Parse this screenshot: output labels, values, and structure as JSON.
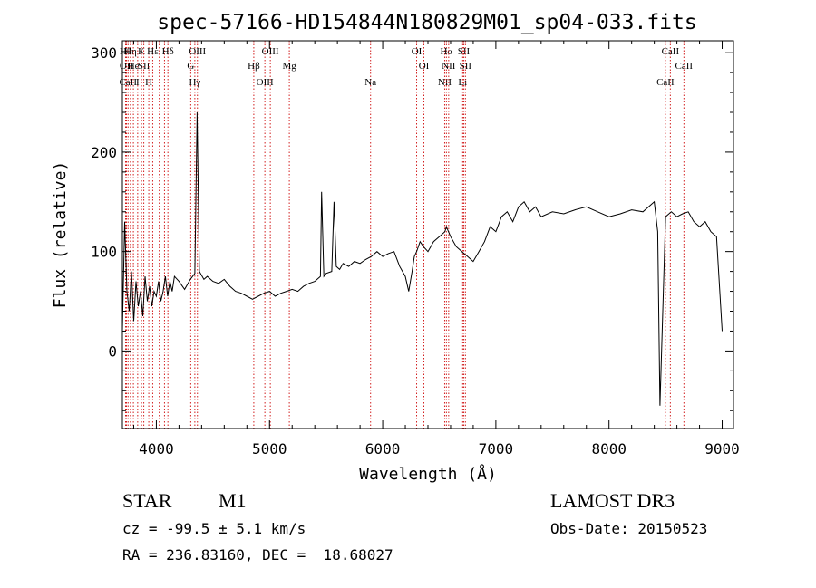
{
  "chart_data": {
    "type": "line",
    "title": "spec-57166-HD154844N180829M01_sp04-033.fits",
    "xlabel": "Wavelength (Å)",
    "ylabel": "Flux (relative)",
    "xlim": [
      3700,
      9100
    ],
    "ylim": [
      -78,
      312
    ],
    "x_ticks": [
      4000,
      5000,
      6000,
      7000,
      8000,
      9000
    ],
    "x_tick_labels": [
      "4000",
      "5000",
      "6000",
      "7000",
      "8000",
      "9000"
    ],
    "y_ticks": [
      0,
      100,
      200,
      300
    ],
    "y_tick_labels": [
      "0",
      "100",
      "200",
      "300"
    ],
    "grid": false,
    "series": [
      {
        "name": "flux",
        "x": [
          3700,
          3720,
          3740,
          3760,
          3780,
          3800,
          3820,
          3840,
          3860,
          3880,
          3900,
          3920,
          3940,
          3960,
          3980,
          4000,
          4020,
          4040,
          4060,
          4080,
          4100,
          4120,
          4140,
          4160,
          4200,
          4250,
          4300,
          4340,
          4360,
          4380,
          4420,
          4450,
          4500,
          4550,
          4600,
          4650,
          4700,
          4750,
          4800,
          4850,
          4900,
          4950,
          5000,
          5050,
          5100,
          5150,
          5200,
          5250,
          5300,
          5350,
          5400,
          5450,
          5460,
          5480,
          5500,
          5550,
          5570,
          5590,
          5620,
          5650,
          5700,
          5750,
          5800,
          5850,
          5900,
          5950,
          6000,
          6050,
          6100,
          6150,
          6200,
          6230,
          6260,
          6280,
          6300,
          6330,
          6360,
          6400,
          6450,
          6500,
          6550,
          6563,
          6600,
          6650,
          6700,
          6750,
          6800,
          6850,
          6900,
          6950,
          7000,
          7050,
          7100,
          7150,
          7200,
          7250,
          7300,
          7350,
          7400,
          7500,
          7600,
          7700,
          7800,
          7900,
          8000,
          8100,
          8200,
          8300,
          8400,
          8430,
          8450,
          8500,
          8550,
          8600,
          8650,
          8700,
          8750,
          8800,
          8850,
          8900,
          8950,
          9000
        ],
        "values": [
          20,
          130,
          60,
          40,
          80,
          30,
          70,
          45,
          60,
          35,
          75,
          50,
          65,
          45,
          60,
          55,
          70,
          50,
          60,
          75,
          55,
          70,
          60,
          75,
          70,
          62,
          72,
          78,
          240,
          80,
          72,
          75,
          70,
          68,
          72,
          65,
          60,
          58,
          55,
          52,
          55,
          58,
          60,
          55,
          58,
          60,
          62,
          60,
          65,
          68,
          70,
          75,
          160,
          75,
          78,
          80,
          150,
          85,
          82,
          88,
          85,
          90,
          88,
          92,
          95,
          100,
          95,
          98,
          100,
          85,
          75,
          60,
          80,
          95,
          100,
          110,
          105,
          100,
          110,
          115,
          120,
          125,
          115,
          105,
          100,
          95,
          90,
          100,
          110,
          125,
          120,
          135,
          140,
          130,
          145,
          150,
          140,
          145,
          135,
          140,
          138,
          142,
          145,
          140,
          135,
          138,
          142,
          140,
          150,
          120,
          -55,
          135,
          140,
          135,
          138,
          140,
          130,
          125,
          130,
          120,
          115,
          20
        ]
      }
    ],
    "line_markers": [
      {
        "x": 3728,
        "label": "Hθ"
      },
      {
        "x": 3736,
        "label": "OII"
      },
      {
        "x": 3750,
        "label": "CaII"
      },
      {
        "x": 3771,
        "label": "Hη"
      },
      {
        "x": 3797,
        "label": "He"
      },
      {
        "x": 3835,
        "label": "I"
      },
      {
        "x": 3869,
        "label": "K"
      },
      {
        "x": 3889,
        "label": "SII"
      },
      {
        "x": 3933,
        "label": "H"
      },
      {
        "x": 3968,
        "label": "Hε"
      },
      {
        "x": 4026,
        "label": ""
      },
      {
        "x": 4072,
        "label": ""
      },
      {
        "x": 4102,
        "label": "Hδ"
      },
      {
        "x": 4304,
        "label": "G"
      },
      {
        "x": 4340,
        "label": "Hγ"
      },
      {
        "x": 4363,
        "label": "OIII"
      },
      {
        "x": 4861,
        "label": "Hβ"
      },
      {
        "x": 4959,
        "label": "OIII"
      },
      {
        "x": 5007,
        "label": "OIII"
      },
      {
        "x": 5175,
        "label": "Mg"
      },
      {
        "x": 5893,
        "label": "Na"
      },
      {
        "x": 6300,
        "label": "OI"
      },
      {
        "x": 6364,
        "label": "OI"
      },
      {
        "x": 6548,
        "label": "NII"
      },
      {
        "x": 6563,
        "label": "Hα"
      },
      {
        "x": 6583,
        "label": "NII"
      },
      {
        "x": 6707,
        "label": "Li"
      },
      {
        "x": 6716,
        "label": "SII"
      },
      {
        "x": 6731,
        "label": "SII"
      },
      {
        "x": 8498,
        "label": "CaII"
      },
      {
        "x": 8542,
        "label": "CaII"
      },
      {
        "x": 8662,
        "label": "CaII"
      }
    ]
  },
  "info": {
    "class_label": "STAR",
    "subclass_label": "M1",
    "survey": "LAMOST DR3",
    "cz": "cz = -99.5 ± 5.1 km/s",
    "obs_date": "Obs-Date: 20150523",
    "coords": "RA = 236.83160, DEC =  18.68027"
  }
}
